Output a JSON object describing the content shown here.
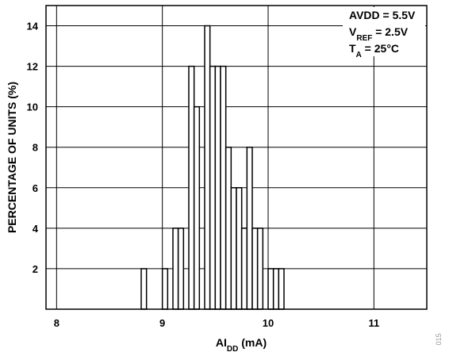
{
  "chart_data": {
    "type": "bar",
    "subtype": "histogram",
    "xlim": [
      7.9,
      11.5
    ],
    "ylim": [
      0,
      15
    ],
    "x_ticks": [
      "8",
      "9",
      "10",
      "11"
    ],
    "y_ticks": [
      "2",
      "4",
      "6",
      "8",
      "10",
      "12",
      "14"
    ],
    "grid": true,
    "bin_width": 0.05,
    "bins": [
      {
        "x": 8.825,
        "value": 2
      },
      {
        "x": 9.025,
        "value": 2
      },
      {
        "x": 9.125,
        "value": 4
      },
      {
        "x": 9.175,
        "value": 4
      },
      {
        "x": 9.275,
        "value": 12
      },
      {
        "x": 9.325,
        "value": 10
      },
      {
        "x": 9.425,
        "value": 14
      },
      {
        "x": 9.475,
        "value": 12
      },
      {
        "x": 9.525,
        "value": 12
      },
      {
        "x": 9.575,
        "value": 12
      },
      {
        "x": 9.625,
        "value": 8
      },
      {
        "x": 9.675,
        "value": 6
      },
      {
        "x": 9.725,
        "value": 6
      },
      {
        "x": 9.775,
        "value": 4
      },
      {
        "x": 9.825,
        "value": 8
      },
      {
        "x": 9.875,
        "value": 4
      },
      {
        "x": 9.925,
        "value": 4
      },
      {
        "x": 10.025,
        "value": 2
      },
      {
        "x": 10.075,
        "value": 2
      },
      {
        "x": 10.125,
        "value": 2
      }
    ],
    "xlabel": {
      "main": "AI",
      "sub": "DD",
      "unit": " (mA)"
    },
    "ylabel": "PERCENTAGE OF UNITS (%)",
    "annotation": [
      {
        "main": "AVDD = 5.5V",
        "sub": "",
        "rest": ""
      },
      {
        "main": "V",
        "sub": "REF",
        "rest": " = 2.5V"
      },
      {
        "main": "T",
        "sub": "A",
        "rest": " = 25°C"
      }
    ],
    "figure_id": "015"
  }
}
